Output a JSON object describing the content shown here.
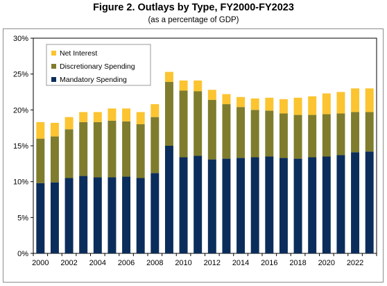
{
  "title": "Figure 2. Outlays by Type, FY2000-FY2023",
  "subtitle": "(as a percentage of GDP)",
  "colors": {
    "Mandatory Spending": "#0b2d5b",
    "Discretionary Spending": "#7f7c2d",
    "Net Interest": "#fbc430"
  },
  "chart_data": {
    "type": "bar",
    "stacked": true,
    "categories": [
      2000,
      2001,
      2002,
      2003,
      2004,
      2005,
      2006,
      2007,
      2008,
      2009,
      2010,
      2011,
      2012,
      2013,
      2014,
      2015,
      2016,
      2017,
      2018,
      2019,
      2020,
      2021,
      2022,
      2023
    ],
    "x_tick_labels": [
      "2000",
      "2002",
      "2004",
      "2006",
      "2008",
      "2010",
      "2012",
      "2014",
      "2016",
      "2018",
      "2020",
      "2022"
    ],
    "y_tick_labels": [
      "0%",
      "5%",
      "10%",
      "15%",
      "20%",
      "25%",
      "30%"
    ],
    "ylim": [
      0,
      30
    ],
    "grid": false,
    "legend": "top-left",
    "series": [
      {
        "name": "Mandatory Spending",
        "values": [
          9.8,
          9.9,
          10.5,
          10.8,
          10.6,
          10.6,
          10.7,
          10.5,
          11.2,
          15.0,
          13.4,
          13.6,
          13.1,
          13.2,
          13.3,
          13.4,
          13.5,
          13.3,
          13.2,
          13.4,
          13.5,
          13.7,
          14.1,
          14.2
        ]
      },
      {
        "name": "Discretionary Spending",
        "values": [
          6.2,
          6.4,
          6.8,
          7.5,
          7.7,
          7.9,
          7.7,
          7.5,
          7.8,
          8.9,
          9.3,
          9.0,
          8.3,
          7.6,
          7.1,
          6.6,
          6.4,
          6.2,
          6.1,
          5.9,
          5.9,
          5.8,
          5.6,
          5.5
        ]
      },
      {
        "name": "Net Interest",
        "values": [
          2.3,
          1.9,
          1.7,
          1.4,
          1.4,
          1.7,
          1.8,
          1.7,
          1.8,
          1.4,
          1.4,
          1.5,
          1.4,
          1.4,
          1.4,
          1.6,
          1.8,
          2.0,
          2.4,
          2.6,
          2.9,
          3.0,
          3.3,
          3.3
        ]
      }
    ]
  }
}
